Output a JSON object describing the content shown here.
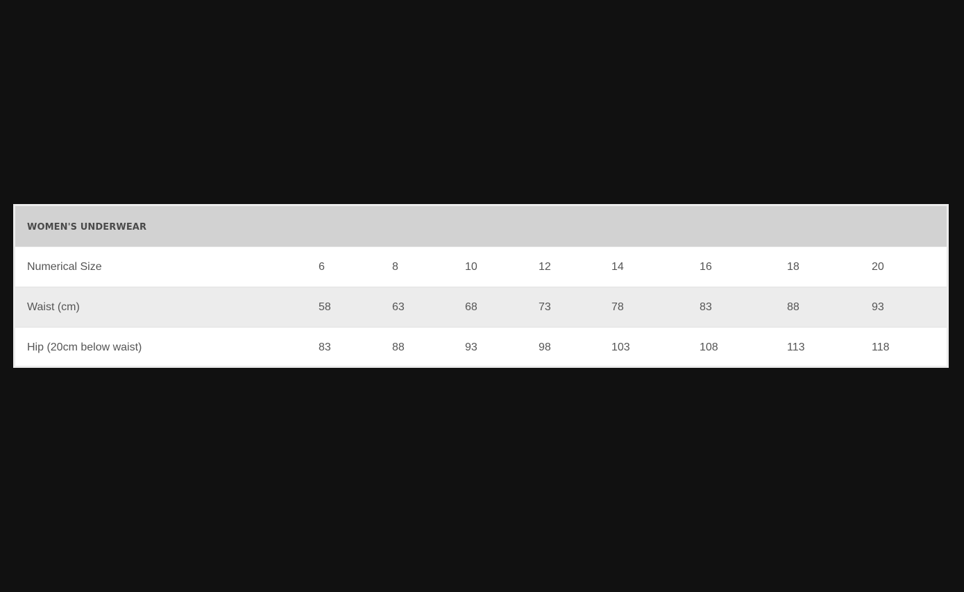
{
  "table": {
    "title": "WOMEN'S UNDERWEAR",
    "rows": [
      {
        "label": "Numerical Size",
        "values": [
          "6",
          "8",
          "10",
          "12",
          "14",
          "16",
          "18",
          "20"
        ]
      },
      {
        "label": "Waist (cm)",
        "values": [
          "58",
          "63",
          "68",
          "73",
          "78",
          "83",
          "88",
          "93"
        ]
      },
      {
        "label": "Hip (20cm below waist)",
        "values": [
          "83",
          "88",
          "93",
          "98",
          "103",
          "108",
          "113",
          "118"
        ]
      }
    ]
  }
}
